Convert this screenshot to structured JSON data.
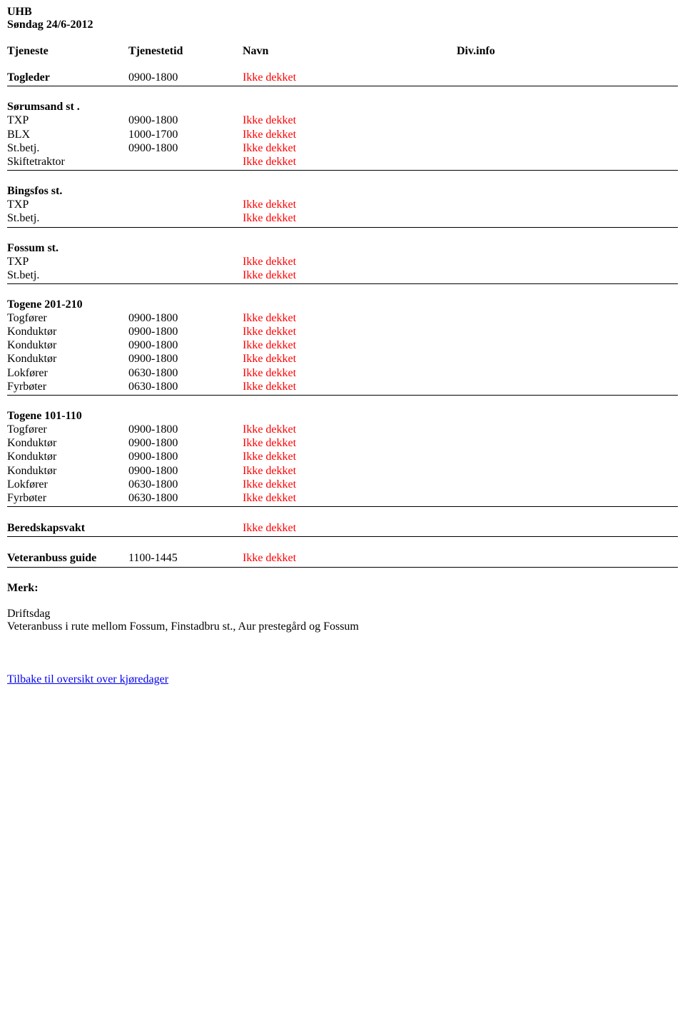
{
  "org": "UHB",
  "date_line": "Søndag 24/6-2012",
  "header": {
    "tjeneste": "Tjeneste",
    "tjenestetid": "Tjenestetid",
    "navn": "Navn",
    "divinfo": "Div.info"
  },
  "togleder": {
    "label": "Togleder",
    "tid": "0900-1800",
    "navn": "Ikke dekket"
  },
  "sorumsand": {
    "title": "Sørumsand st .",
    "rows": [
      {
        "tj": "TXP",
        "tid": "0900-1800",
        "navn": "Ikke dekket"
      },
      {
        "tj": "BLX",
        "tid": "1000-1700",
        "navn": "Ikke dekket"
      },
      {
        "tj": "St.betj.",
        "tid": "0900-1800",
        "navn": "Ikke dekket"
      },
      {
        "tj": "Skiftetraktor",
        "tid": "",
        "navn": "Ikke dekket"
      }
    ]
  },
  "bingsfos": {
    "title": "Bingsfos st.",
    "rows": [
      {
        "tj": "TXP",
        "tid": "",
        "navn": "Ikke dekket"
      },
      {
        "tj": "St.betj.",
        "tid": "",
        "navn": "Ikke dekket"
      }
    ]
  },
  "fossum": {
    "title": "Fossum st.",
    "rows": [
      {
        "tj": "TXP",
        "tid": "",
        "navn": "Ikke dekket"
      },
      {
        "tj": "St.betj.",
        "tid": "",
        "navn": "Ikke dekket"
      }
    ]
  },
  "togene201": {
    "title": "Togene 201-210",
    "rows": [
      {
        "tj": "Togfører",
        "tid": "0900-1800",
        "navn": "Ikke dekket"
      },
      {
        "tj": "Konduktør",
        "tid": "0900-1800",
        "navn": "Ikke dekket"
      },
      {
        "tj": "Konduktør",
        "tid": "0900-1800",
        "navn": "Ikke dekket"
      },
      {
        "tj": "Konduktør",
        "tid": "0900-1800",
        "navn": "Ikke dekket"
      },
      {
        "tj": "Lokfører",
        "tid": "0630-1800",
        "navn": "Ikke dekket"
      },
      {
        "tj": "Fyrbøter",
        "tid": "0630-1800",
        "navn": "Ikke dekket"
      }
    ]
  },
  "togene101": {
    "title": "Togene 101-110",
    "rows": [
      {
        "tj": "Togfører",
        "tid": "0900-1800",
        "navn": "Ikke dekket"
      },
      {
        "tj": "Konduktør",
        "tid": "0900-1800",
        "navn": "Ikke dekket"
      },
      {
        "tj": "Konduktør",
        "tid": "0900-1800",
        "navn": "Ikke dekket"
      },
      {
        "tj": "Konduktør",
        "tid": "0900-1800",
        "navn": "Ikke dekket"
      },
      {
        "tj": "Lokfører",
        "tid": "0630-1800",
        "navn": "Ikke dekket"
      },
      {
        "tj": "Fyrbøter",
        "tid": "0630-1800",
        "navn": "Ikke dekket"
      }
    ]
  },
  "beredskap": {
    "label": "Beredskapsvakt",
    "navn": "Ikke dekket"
  },
  "veteranbuss": {
    "label": "Veteranbuss guide",
    "tid": "1100-1445",
    "navn": "Ikke dekket"
  },
  "merk": {
    "title": "Merk:",
    "lines": [
      "Driftsdag",
      "Veteranbuss i rute mellom Fossum, Finstadbru st., Aur prestegård og Fossum"
    ]
  },
  "back_link": "Tilbake til oversikt over kjøredager"
}
